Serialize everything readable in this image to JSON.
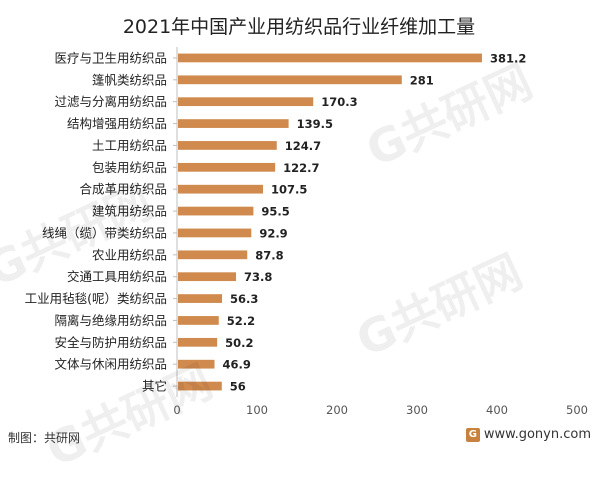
{
  "chart_data": {
    "type": "bar",
    "orientation": "horizontal",
    "title": "2021年中国产业用纺织品行业纤维加工量",
    "categories": [
      "医疗与卫生用纺织品",
      "篷帆类纺织品",
      "过滤与分离用纺织品",
      "结构增强用纺织品",
      "土工用纺织品",
      "包装用纺织品",
      "合成革用纺织品",
      "建筑用纺织品",
      "线绳（缆）带类纺织品",
      "农业用纺织品",
      "交通工具用纺织品",
      "工业用毡毯(呢）类纺织品",
      "隔离与绝缘用纺织品",
      "安全与防护用纺织品",
      "文体与休闲用纺织品",
      "其它"
    ],
    "values": [
      381.2,
      281,
      170.3,
      139.5,
      124.7,
      122.7,
      107.5,
      95.5,
      92.9,
      87.8,
      73.8,
      56.3,
      52.2,
      50.2,
      46.9,
      56
    ],
    "value_labels": [
      "381.2",
      "281",
      "170.3",
      "139.5",
      "124.7",
      "122.7",
      "107.5",
      "95.5",
      "92.9",
      "87.8",
      "73.8",
      "56.3",
      "52.2",
      "50.2",
      "46.9",
      "56"
    ],
    "xlim": [
      0,
      500
    ],
    "xticks": [
      0,
      100,
      200,
      300,
      400,
      500
    ],
    "grid": false,
    "bar_color": "#d08a4e"
  },
  "footer": {
    "source": "制图：共研网",
    "site": "www.gonyn.com",
    "badge": "G"
  },
  "watermark": "G共研网"
}
